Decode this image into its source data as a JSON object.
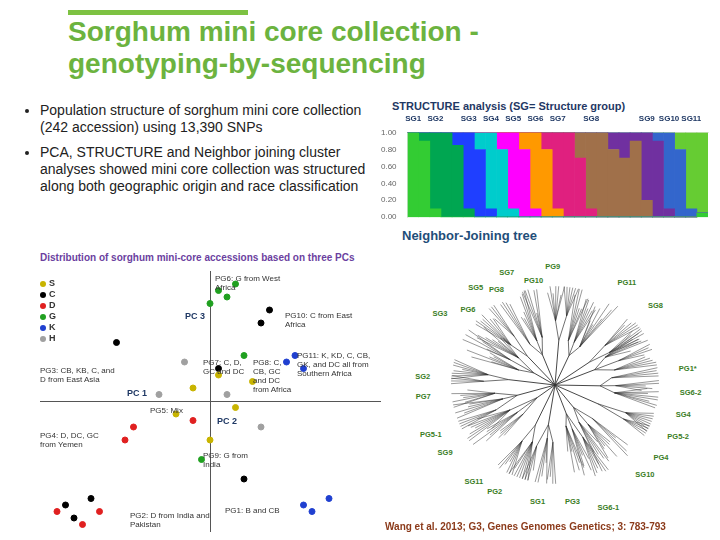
{
  "slide": {
    "title": [
      "Sorghum mini core collection -",
      "genotyping-by-sequencing"
    ],
    "bullets": [
      "Population structure of sorghum mini core collection (242 accession) using 13,390 SNPs",
      "PCA, STRUCTURE and Neighbor joining cluster analyses showed mini core collection was structured along both geographic origin and race classification"
    ],
    "citation": "Wang et al. 2013; G3, Genes Genomes Genetics; 3: 783-793"
  },
  "chart_data": [
    {
      "type": "bar",
      "title": "STRUCTURE analysis (SG= Structure group)",
      "stacked": true,
      "grid": false,
      "categories": [
        "SG1",
        null,
        "SG2",
        null,
        null,
        "SG3",
        null,
        "SG4",
        null,
        "SG5",
        null,
        "SG6",
        null,
        "SG7",
        null,
        null,
        "SG8",
        null,
        null,
        null,
        null,
        "SG9",
        null,
        "SG10",
        null,
        "SG11",
        null
      ],
      "ylim": [
        0,
        1
      ],
      "yticks": [
        {
          "value": 0,
          "label": "0.00"
        },
        {
          "value": 0.2,
          "label": "0.20"
        },
        {
          "value": 0.4,
          "label": "0.40"
        },
        {
          "value": 0.6,
          "label": "0.60"
        },
        {
          "value": 0.8,
          "label": "0.80"
        },
        {
          "value": 1,
          "label": "1.00"
        }
      ],
      "series": [
        {
          "name": "SG1",
          "color": "#33cc33",
          "values": [
            1,
            0.9,
            0.1,
            0,
            0,
            0,
            0,
            0,
            0,
            0,
            0,
            0,
            0,
            0,
            0,
            0,
            0,
            0,
            0,
            0,
            0,
            0,
            0,
            0,
            0,
            0,
            0.05
          ]
        },
        {
          "name": "SG2",
          "color": "#00a651",
          "values": [
            0,
            0.1,
            0.9,
            1,
            0.85,
            0.1,
            0,
            0,
            0,
            0,
            0,
            0,
            0,
            0,
            0,
            0,
            0,
            0,
            0,
            0,
            0,
            0,
            0,
            0,
            0,
            0,
            0
          ]
        },
        {
          "name": "SG3",
          "color": "#1f3fff",
          "values": [
            0,
            0,
            0,
            0,
            0.15,
            0.9,
            0.8,
            0.1,
            0,
            0,
            0,
            0,
            0,
            0,
            0,
            0,
            0,
            0,
            0,
            0,
            0,
            0,
            0,
            0,
            0,
            0,
            0
          ]
        },
        {
          "name": "SG4",
          "color": "#00cccc",
          "values": [
            0,
            0,
            0,
            0,
            0,
            0,
            0.2,
            0.9,
            0.8,
            0.1,
            0,
            0,
            0,
            0,
            0,
            0,
            0,
            0,
            0,
            0,
            0,
            0,
            0,
            0,
            0,
            0,
            0
          ]
        },
        {
          "name": "SG5",
          "color": "#ff00ff",
          "values": [
            0,
            0,
            0,
            0,
            0,
            0,
            0,
            0,
            0.2,
            0.9,
            0.8,
            0.1,
            0,
            0,
            0,
            0,
            0,
            0,
            0,
            0,
            0,
            0,
            0,
            0,
            0,
            0,
            0
          ]
        },
        {
          "name": "SG6",
          "color": "#ff9900",
          "values": [
            0,
            0,
            0,
            0,
            0,
            0,
            0,
            0,
            0,
            0,
            0.2,
            0.9,
            0.8,
            0.1,
            0,
            0,
            0,
            0,
            0,
            0,
            0,
            0,
            0,
            0,
            0,
            0,
            0
          ]
        },
        {
          "name": "SG7",
          "color": "#e0207f",
          "values": [
            0,
            0,
            0,
            0,
            0,
            0,
            0,
            0,
            0,
            0,
            0,
            0,
            0.2,
            0.9,
            1,
            0.7,
            0.1,
            0,
            0,
            0,
            0,
            0,
            0,
            0,
            0,
            0,
            0
          ]
        },
        {
          "name": "SG8",
          "color": "#a0704a",
          "values": [
            0,
            0,
            0,
            0,
            0,
            0,
            0,
            0,
            0,
            0,
            0,
            0,
            0,
            0,
            0,
            0.3,
            0.9,
            1,
            0.8,
            0.7,
            0.9,
            0.2,
            0,
            0,
            0,
            0,
            0
          ]
        },
        {
          "name": "SG9",
          "color": "#7030a0",
          "values": [
            0,
            0,
            0,
            0,
            0,
            0,
            0,
            0,
            0,
            0,
            0,
            0,
            0,
            0,
            0,
            0,
            0,
            0,
            0.2,
            0.3,
            0.1,
            0.8,
            0.9,
            0.1,
            0,
            0,
            0
          ]
        },
        {
          "name": "SG10",
          "color": "#3366cc",
          "values": [
            0,
            0,
            0,
            0,
            0,
            0,
            0,
            0,
            0,
            0,
            0,
            0,
            0,
            0,
            0,
            0,
            0,
            0,
            0,
            0,
            0,
            0,
            0.1,
            0.9,
            0.8,
            0.1,
            0
          ]
        },
        {
          "name": "SG11",
          "color": "#66cc33",
          "values": [
            0,
            0,
            0,
            0,
            0,
            0,
            0,
            0,
            0,
            0,
            0,
            0,
            0,
            0,
            0,
            0,
            0,
            0,
            0,
            0,
            0,
            0,
            0,
            0,
            0.2,
            0.9,
            0.95
          ]
        }
      ]
    },
    {
      "type": "scatter",
      "title": "Distribution of sorghum mini-core accessions based on three PCs",
      "x_label": "PC 1",
      "y_label": "PC 2",
      "z_label": "PC 3",
      "xlim": [
        -1,
        1
      ],
      "ylim": [
        -1,
        1
      ],
      "tick_labels": false,
      "grid": false,
      "legend": "top-left",
      "series": [
        {
          "name": "S",
          "color": "#c8b400",
          "marker": "circle",
          "x": [
            -0.1,
            0.05,
            0.15,
            -0.2,
            0.25,
            0.0
          ],
          "y": [
            0.1,
            0.2,
            -0.05,
            -0.1,
            0.15,
            -0.3
          ]
        },
        {
          "name": "C",
          "color": "#000000",
          "marker": "circle",
          "x": [
            -0.85,
            -0.8,
            -0.7,
            0.3,
            0.35,
            -0.55,
            0.05,
            0.2
          ],
          "y": [
            -0.8,
            -0.9,
            -0.75,
            0.6,
            0.7,
            0.45,
            0.25,
            -0.6
          ]
        },
        {
          "name": "D",
          "color": "#e02020",
          "marker": "circle",
          "x": [
            -0.9,
            -0.75,
            -0.65,
            -0.45,
            -0.5,
            -0.1
          ],
          "y": [
            -0.85,
            -0.95,
            -0.85,
            -0.2,
            -0.3,
            -0.15
          ]
        },
        {
          "name": "G",
          "color": "#20a020",
          "marker": "circle",
          "x": [
            0.05,
            0.1,
            0.15,
            0.0,
            0.2,
            -0.05
          ],
          "y": [
            0.85,
            0.8,
            0.9,
            0.75,
            0.35,
            -0.45
          ]
        },
        {
          "name": "K",
          "color": "#2040d0",
          "marker": "circle",
          "x": [
            0.55,
            0.6,
            0.7,
            0.5,
            0.55,
            0.45
          ],
          "y": [
            -0.8,
            -0.85,
            -0.75,
            0.35,
            0.25,
            0.3
          ]
        },
        {
          "name": "H",
          "color": "#a0a0a0",
          "marker": "circle",
          "x": [
            -0.3,
            0.1,
            -0.15,
            0.3
          ],
          "y": [
            0.05,
            0.05,
            0.3,
            -0.2
          ]
        }
      ],
      "annotations": [
        "PG6: G from West Africa",
        "PG10: C from East Africa",
        "PG11: K, KD, C, CB, GK, and DC all from Southern Africa",
        "PG7: C, D, GC and DC",
        "PG8: C, CB, GC and DC from Africa",
        "PG3: CB, KB, C, and D from East Asia",
        "PG5: Mix",
        "PG4: D, DC, GC from Yemen",
        "PG9: G from India",
        "PG1: B and CB",
        "PG2: D from India and Pakistan"
      ]
    }
  ],
  "tree": {
    "title": "Neighbor-Joining tree",
    "labels": [
      "SG5",
      "PG8",
      "SG7",
      "PG10",
      "PG9",
      "SG3",
      "PG6",
      "PG11",
      "SG8",
      "SG2",
      "PG7",
      "PG1*",
      "SG6-2",
      "SG4",
      "PG5-2",
      "PG5-1",
      "SG9",
      "PG4",
      "SG10",
      "PG2",
      "SG11",
      "SG1",
      "PG3",
      "SG6-1"
    ]
  }
}
